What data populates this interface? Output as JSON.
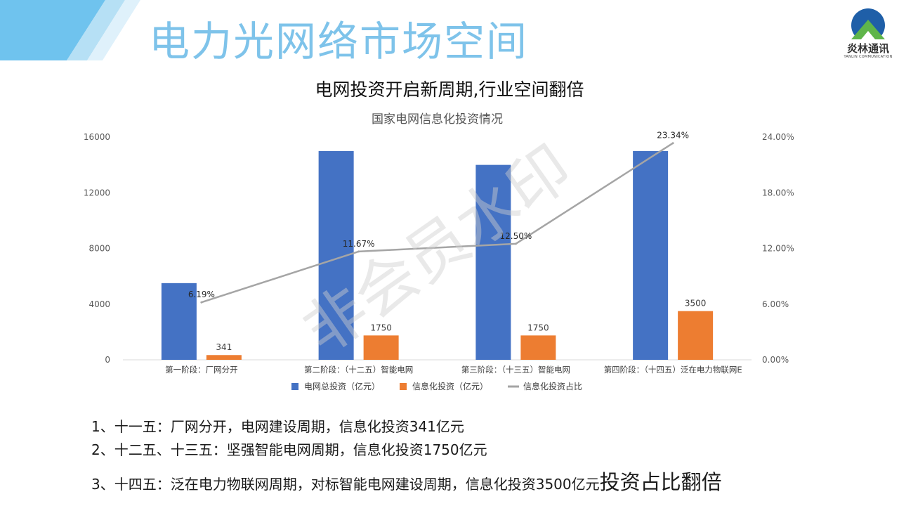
{
  "header": {
    "title": "电力光网络市场空间",
    "logo_text": "炎林通讯",
    "logo_subtext": "YANLIN COMMUNICATION",
    "accent_color": "#7ec3ea"
  },
  "watermark": "非会员水印",
  "chart_data": {
    "type": "bar",
    "title": "电网投资开启新周期,行业空间翻倍",
    "subtitle": "国家电网信息化投资情况",
    "categories": [
      "第一阶段：厂网分开",
      "第二阶段：（十二五）智能电网",
      "第三阶段：（十三五）智能电网",
      "第四阶段：（十四五）泛在电力物联网E"
    ],
    "series": [
      {
        "name": "电网总投资（亿元）",
        "kind": "bar",
        "axis": "left",
        "color": "#4472c4",
        "values": [
          5509,
          14996,
          14000,
          14996
        ],
        "labels": [
          "",
          "",
          "",
          ""
        ]
      },
      {
        "name": "信息化投资（亿元）",
        "kind": "bar",
        "axis": "left",
        "color": "#ed7d31",
        "values": [
          341,
          1750,
          1750,
          3500
        ],
        "labels": [
          "341",
          "1750",
          "1750",
          "3500"
        ]
      },
      {
        "name": "信息化投资占比",
        "kind": "line",
        "axis": "right",
        "color": "#a5a5a5",
        "values": [
          6.19,
          11.67,
          12.5,
          23.34
        ],
        "labels": [
          "6.19%",
          "11.67%",
          "12.50%",
          "23.34%"
        ]
      }
    ],
    "ylim": [
      0,
      16000
    ],
    "yticks": [
      "0",
      "4000",
      "8000",
      "12000",
      "16000"
    ],
    "y2lim": [
      0,
      24
    ],
    "y2ticks": [
      "0.00%",
      "6.00%",
      "12.00%",
      "18.00%",
      "24.00%"
    ],
    "legend_position": "bottom",
    "grid": false
  },
  "notes": {
    "line1": "1、十一五：厂网分开，电网建设周期，信息化投资341亿元",
    "line2": "2、十二五、十三五：坚强智能电网周期，信息化投资1750亿元",
    "line3": "3、十四五：泛在电力物联网周期，对标智能电网建设周期，信息化投资3500亿元",
    "line3_emphasis": "投资占比翻倍"
  }
}
